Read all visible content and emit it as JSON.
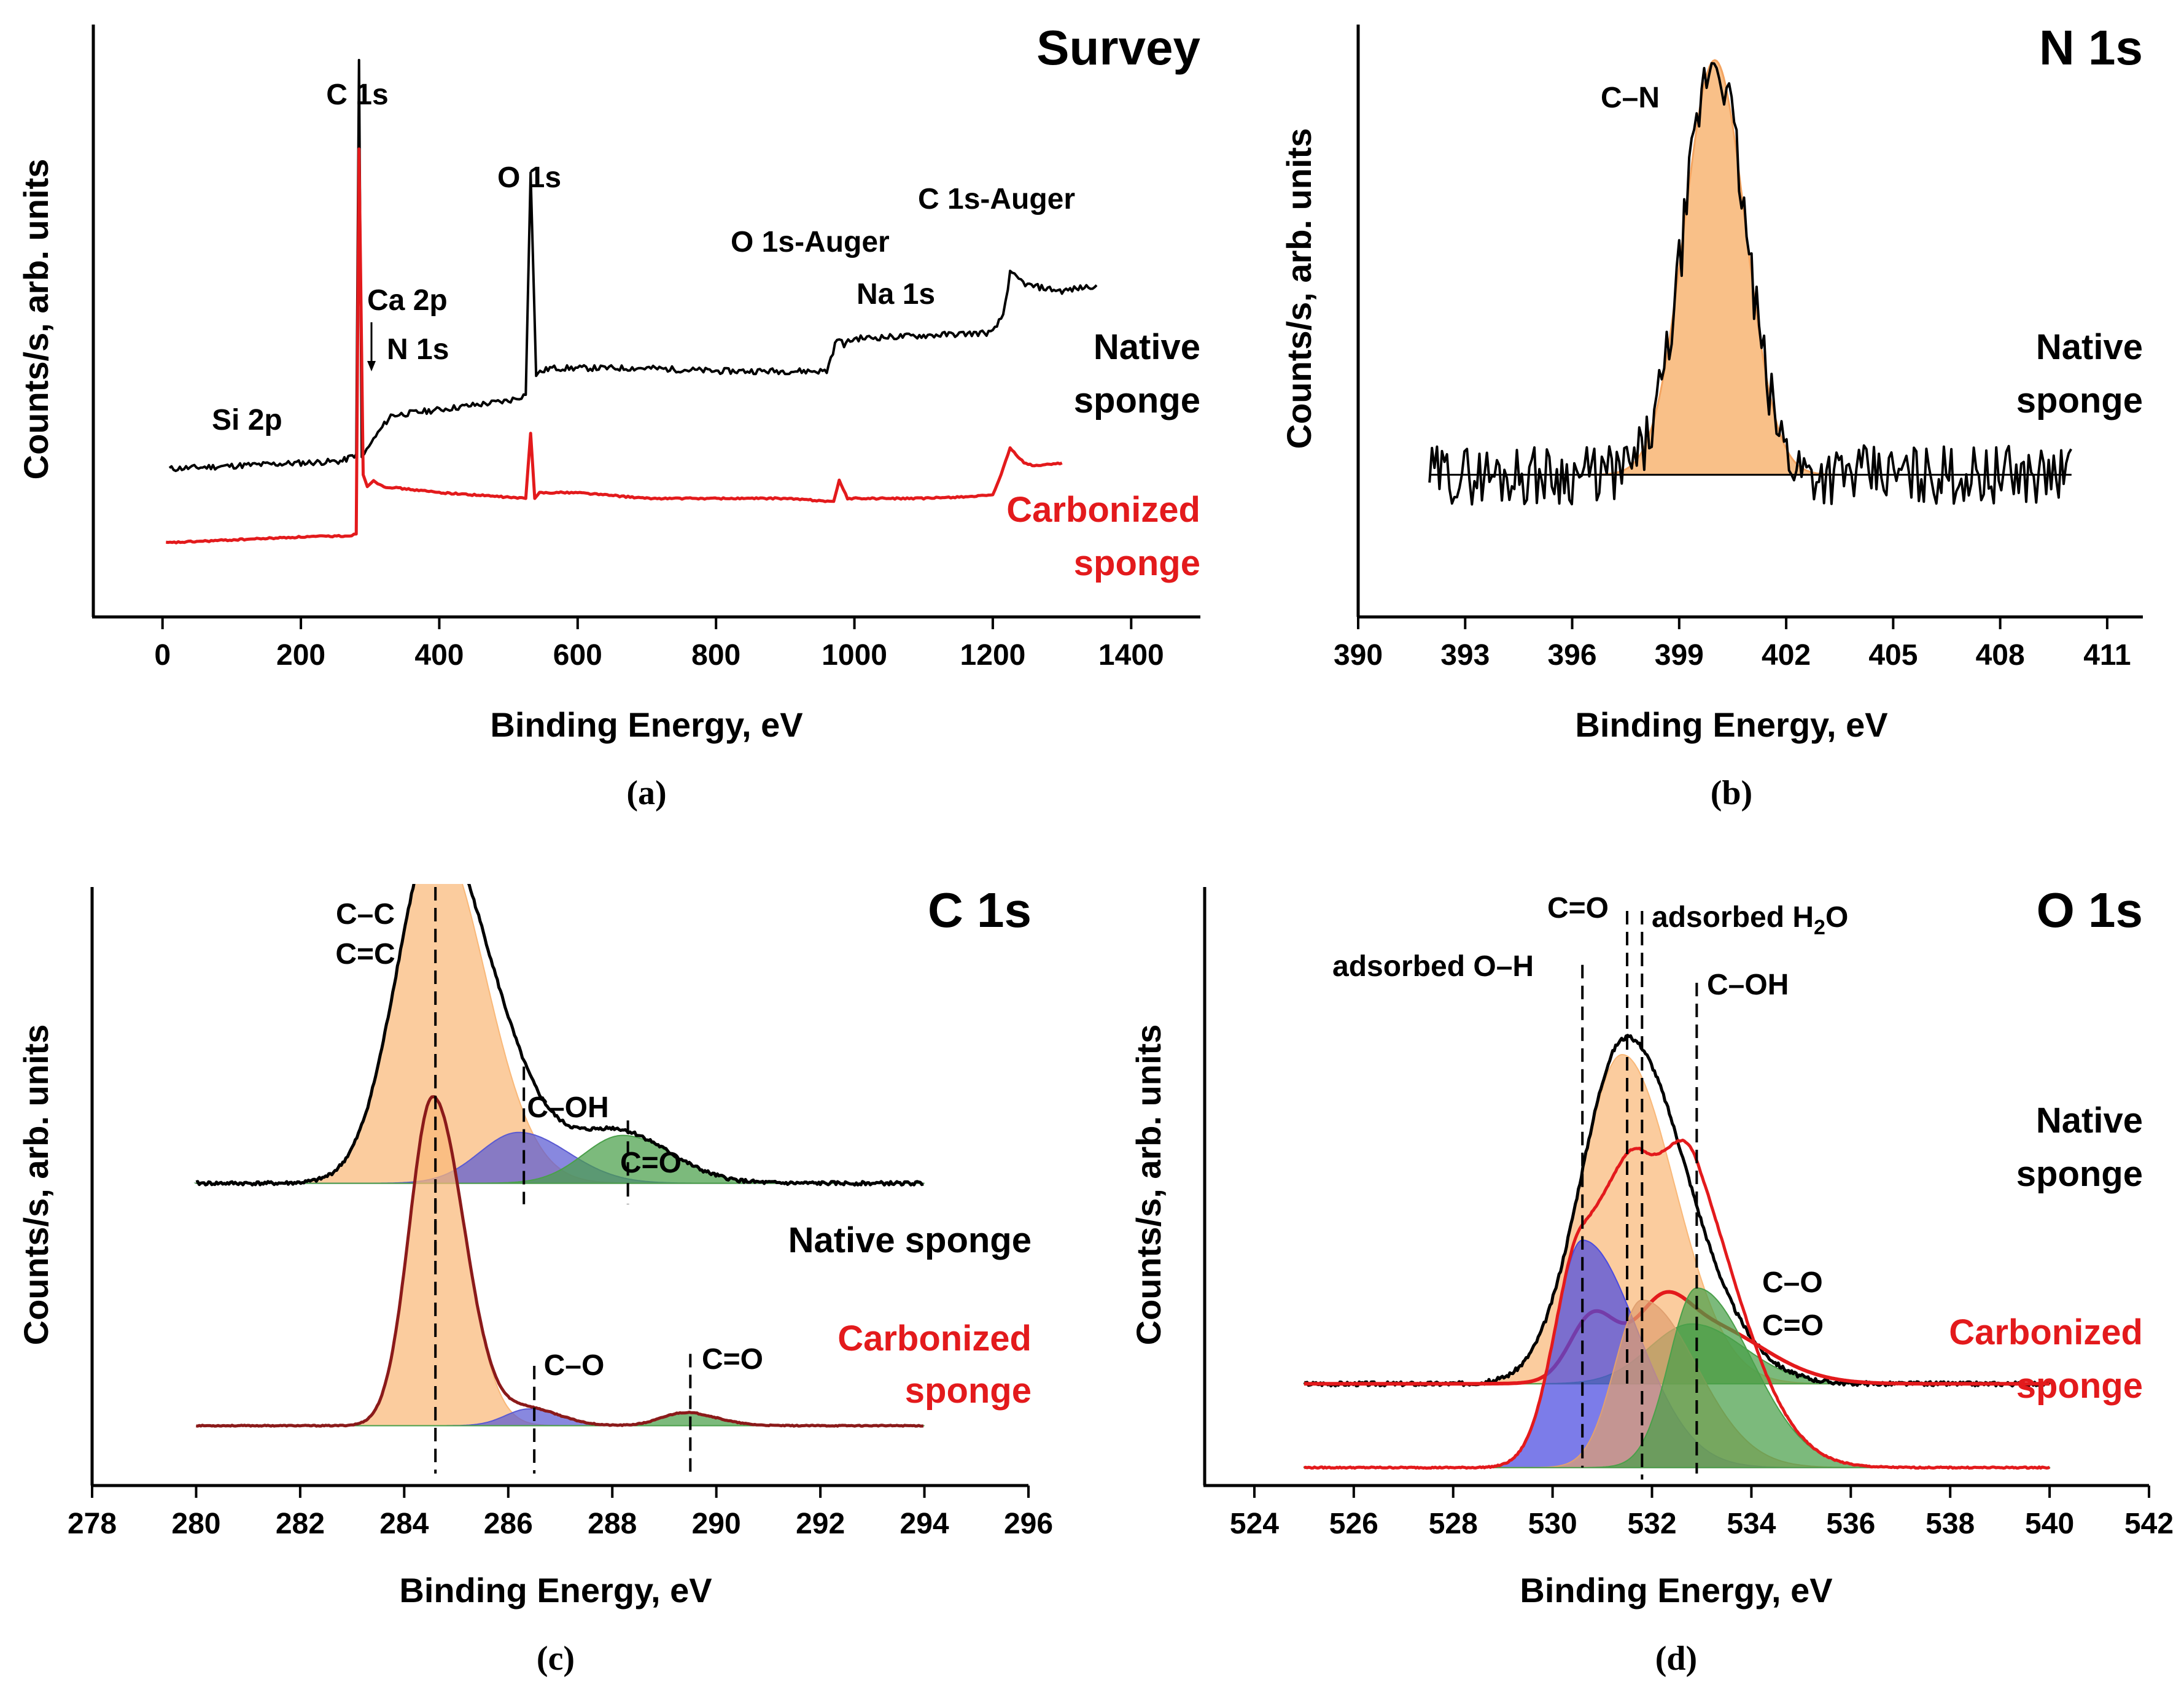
{
  "chart_data": [
    {
      "id": "a",
      "type": "line",
      "panel_label": "(a)",
      "title": "Survey",
      "xlabel": "Binding Energy, eV",
      "ylabel": "Counts/s, arb. units",
      "xlim": [
        -100,
        1500
      ],
      "ylim": [
        0,
        100
      ],
      "xticks": [
        0,
        200,
        400,
        600,
        800,
        1000,
        1200,
        1400
      ],
      "sample_labels": [
        {
          "text": [
            "Native",
            "sponge"
          ],
          "color": "#000000"
        },
        {
          "text": [
            "Carbonized",
            "sponge"
          ],
          "color": "#e31a1c"
        }
      ],
      "peak_labels": [
        "C 1s",
        "O 1s",
        "C 1s-Auger",
        "O 1s-Auger",
        "Na 1s",
        "Ca 2p",
        "N 1s",
        "Si 2p"
      ],
      "series": [
        {
          "name": "Native sponge",
          "color": "#000000",
          "points": [
            [
              10,
              25
            ],
            [
              100,
              25.5
            ],
            [
              200,
              26
            ],
            [
              260,
              26.3
            ],
            [
              280,
              27.5
            ],
            [
              284,
              94
            ],
            [
              288,
              27
            ],
            [
              295,
              28
            ],
            [
              305,
              30
            ],
            [
              330,
              34
            ],
            [
              400,
              35
            ],
            [
              500,
              36.5
            ],
            [
              525,
              37.5
            ],
            [
              532,
              75
            ],
            [
              540,
              41
            ],
            [
              560,
              42
            ],
            [
              600,
              42
            ],
            [
              700,
              42
            ],
            [
              800,
              41.5
            ],
            [
              960,
              41.5
            ],
            [
              975,
              47
            ],
            [
              985,
              46
            ],
            [
              1000,
              47
            ],
            [
              1100,
              47.5
            ],
            [
              1200,
              48
            ],
            [
              1215,
              51
            ],
            [
              1225,
              58
            ],
            [
              1250,
              56
            ],
            [
              1300,
              55
            ],
            [
              1350,
              56
            ]
          ]
        },
        {
          "name": "Carbonized sponge",
          "color": "#e31a1c",
          "points": [
            [
              5,
              12.5
            ],
            [
              100,
              13
            ],
            [
              200,
              13.5
            ],
            [
              270,
              13.7
            ],
            [
              280,
              14
            ],
            [
              284,
              79
            ],
            [
              290,
              24
            ],
            [
              296,
              22
            ],
            [
              305,
              23
            ],
            [
              320,
              22
            ],
            [
              400,
              21
            ],
            [
              525,
              20
            ],
            [
              532,
              31
            ],
            [
              538,
              20
            ],
            [
              545,
              21
            ],
            [
              600,
              21
            ],
            [
              700,
              20
            ],
            [
              900,
              20
            ],
            [
              970,
              19.5
            ],
            [
              978,
              23
            ],
            [
              990,
              20
            ],
            [
              1100,
              20
            ],
            [
              1200,
              20.5
            ],
            [
              1215,
              25
            ],
            [
              1225,
              28.5
            ],
            [
              1245,
              26
            ],
            [
              1260,
              25.5
            ],
            [
              1300,
              26
            ]
          ]
        }
      ]
    },
    {
      "id": "b",
      "type": "line",
      "panel_label": "(b)",
      "title": "N 1s",
      "xlabel": "Binding Energy, eV",
      "ylabel": "Counts/s, arb. units",
      "xlim": [
        390,
        412
      ],
      "ylim": [
        0,
        100
      ],
      "xticks": [
        390,
        393,
        396,
        399,
        402,
        405,
        408,
        411
      ],
      "sample_labels": [
        {
          "text": [
            "Native",
            "sponge"
          ],
          "color": "#000000"
        }
      ],
      "peak_labels": [
        "C–N"
      ],
      "series": [
        {
          "name": "Native sponge",
          "color": "#000000",
          "baseline": 24,
          "noise_amplitude": 5,
          "x_range": [
            392,
            410
          ]
        },
        {
          "name": "C–N fit",
          "color": "#f4a460",
          "fill": "#f9c088",
          "center": 400,
          "sigma": 0.85,
          "amplitude": 70,
          "baseline": 24
        }
      ]
    },
    {
      "id": "c",
      "type": "area",
      "panel_label": "(c)",
      "title": "C 1s",
      "xlabel": "Binding Energy, eV",
      "ylabel": "Counts/s, arb. units",
      "xlim": [
        278,
        296
      ],
      "ylim": [
        0,
        100
      ],
      "xticks": [
        278,
        280,
        282,
        284,
        286,
        288,
        290,
        292,
        294,
        296
      ],
      "sample_labels": [
        {
          "text": [
            "Native sponge"
          ],
          "color": "#000000"
        },
        {
          "text": [
            "Carbonized",
            "sponge"
          ],
          "color": "#e31a1c"
        }
      ],
      "components": [
        {
          "sample": "Native sponge",
          "label": "C–C / C=C",
          "center": 284.6,
          "amplitude": 58,
          "fill": "#f9b878"
        },
        {
          "sample": "Native sponge",
          "label": "C–OH",
          "center": 286.2,
          "amplitude": 8.5,
          "fill": "#5a5ad2"
        },
        {
          "sample": "Native sponge",
          "label": "C=O",
          "center": 288.2,
          "amplitude": 8,
          "fill": "#4aa04a"
        },
        {
          "sample": "Carbonized sponge",
          "label": "C–C / C=C",
          "center": 284.55,
          "amplitude": 55,
          "fill": "#f9b878"
        },
        {
          "sample": "Carbonized sponge",
          "label": "C–O",
          "center": 286.4,
          "amplitude": 2.8,
          "fill": "#5a5ad2"
        },
        {
          "sample": "Carbonized sponge",
          "label": "C=O",
          "center": 289.4,
          "amplitude": 2.2,
          "fill": "#4aa04a"
        }
      ],
      "dashed_positions": [
        284.6,
        286.3,
        288.3,
        284.6,
        286.5,
        289.5
      ],
      "annotations": [
        "C–C",
        "C=C",
        "C–OH",
        "C=O",
        "C–O",
        "C=O"
      ]
    },
    {
      "id": "d",
      "type": "area",
      "panel_label": "(d)",
      "title": "O 1s",
      "xlabel": "Binding Energy, eV",
      "ylabel": "Counts/s, arb. units",
      "xlim": [
        523,
        542
      ],
      "ylim": [
        0,
        100
      ],
      "xticks": [
        524,
        526,
        528,
        530,
        532,
        534,
        536,
        538,
        540,
        542
      ],
      "sample_labels": [
        {
          "text": [
            "Native",
            "sponge"
          ],
          "color": "#000000"
        },
        {
          "text": [
            "Carbonized",
            "sponge"
          ],
          "color": "#e31a1c"
        }
      ],
      "components": [
        {
          "sample": "Native sponge",
          "label": "C=O",
          "center": 531.4,
          "amplitude": 55,
          "fill": "#f9b878"
        },
        {
          "sample": "Native sponge",
          "label": "C–OH",
          "center": 532.8,
          "amplitude": 10,
          "fill": "#4aa04a"
        },
        {
          "sample": "Carbonized sponge",
          "label": "adsorbed O–H",
          "center": 530.6,
          "amplitude": 38,
          "fill": "#4a4ae0"
        },
        {
          "sample": "Carbonized sponge",
          "label": "adsorbed H₂O",
          "center": 531.8,
          "amplitude": 28,
          "fill": "#e0a070"
        },
        {
          "sample": "Carbonized sponge",
          "label": "C–O / C=O",
          "center": 532.9,
          "amplitude": 30,
          "fill": "#4aa04a"
        }
      ],
      "dashed_positions": [
        530.6,
        531.5,
        531.8,
        532.9
      ],
      "annotations": [
        "adsorbed O–H",
        "C=O",
        "adsorbed H",
        "2",
        "O",
        "C–OH",
        "C–O",
        "C=O"
      ]
    }
  ]
}
